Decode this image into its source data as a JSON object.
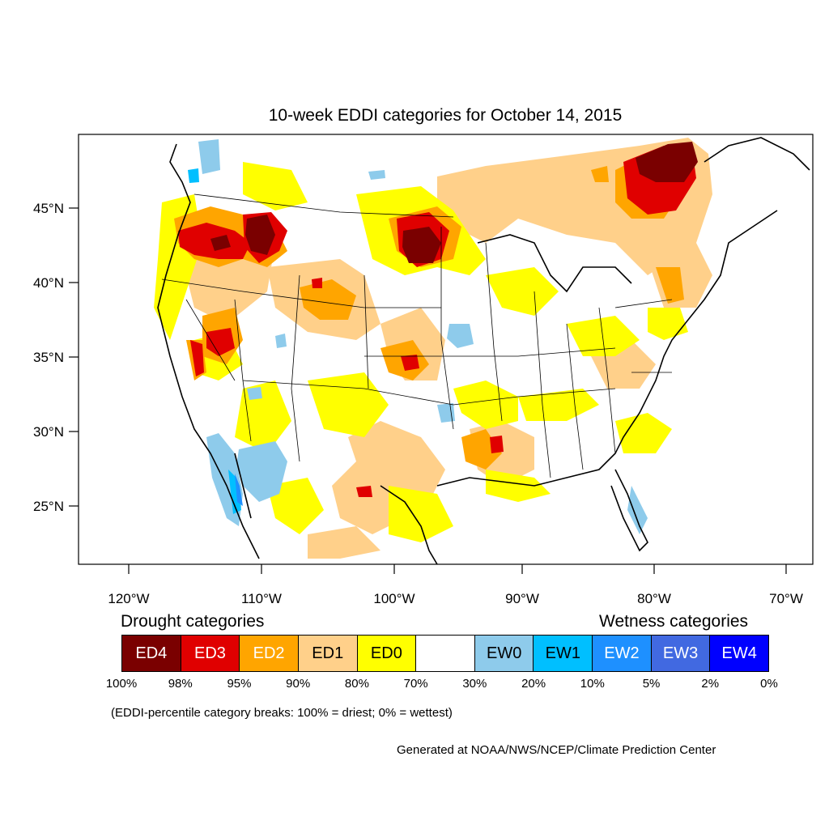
{
  "title": "10-week EDDI categories for October 14, 2015",
  "axes": {
    "lat_ticks": [
      "45°N",
      "40°N",
      "35°N",
      "30°N",
      "25°N"
    ],
    "lon_ticks": [
      "120°W",
      "110°W",
      "100°W",
      "90°W",
      "80°W",
      "70°W"
    ]
  },
  "legend": {
    "drought_heading": "Drought categories",
    "wetness_heading": "Wetness categories",
    "categories": [
      {
        "label": "ED4",
        "color": "#7a0000",
        "text_color": "#ffffff"
      },
      {
        "label": "ED3",
        "color": "#e00000",
        "text_color": "#ffffff"
      },
      {
        "label": "ED2",
        "color": "#ffa500",
        "text_color": "#ffffff"
      },
      {
        "label": "ED1",
        "color": "#ffd08a",
        "text_color": "#000000"
      },
      {
        "label": "ED0",
        "color": "#ffff00",
        "text_color": "#000000"
      },
      {
        "label": "",
        "color": "#ffffff",
        "text_color": "#000000"
      },
      {
        "label": "EW0",
        "color": "#8ecbeb",
        "text_color": "#000000"
      },
      {
        "label": "EW1",
        "color": "#00bfff",
        "text_color": "#000000"
      },
      {
        "label": "EW2",
        "color": "#1e90ff",
        "text_color": "#ffffff"
      },
      {
        "label": "EW3",
        "color": "#4169e1",
        "text_color": "#ffffff"
      },
      {
        "label": "EW4",
        "color": "#0000ff",
        "text_color": "#ffffff"
      }
    ],
    "breaks": [
      "100%",
      "98%",
      "95%",
      "90%",
      "80%",
      "70%",
      "30%",
      "20%",
      "10%",
      "5%",
      "2%",
      "0%"
    ]
  },
  "note": "(EDDI-percentile category breaks: 100% = driest; 0% = wettest)",
  "credit": "Generated at NOAA/NWS/NCEP/Climate Prediction Center"
}
